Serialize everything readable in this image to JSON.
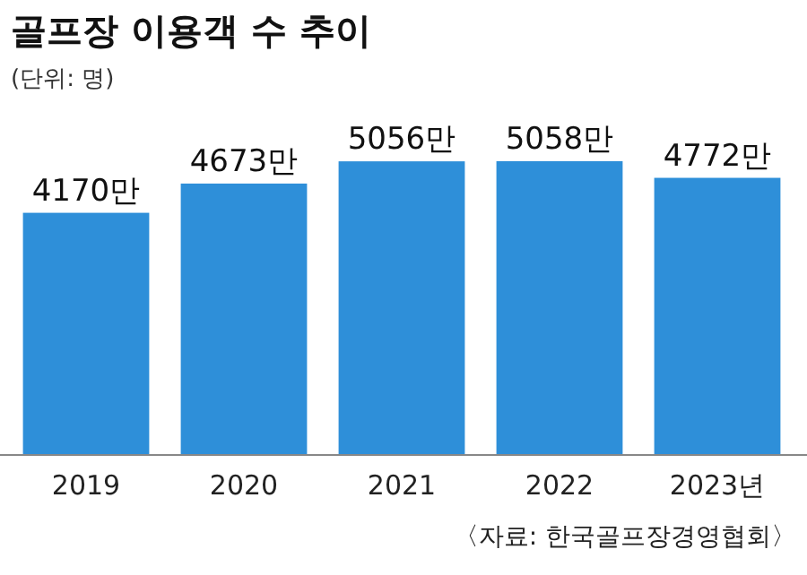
{
  "chart_data": {
    "type": "bar",
    "title": "골프장 이용객 수 추이",
    "subtitle": "(단위: 명)",
    "categories": [
      "2019",
      "2020",
      "2021",
      "2022",
      "2023년"
    ],
    "values": [
      4170,
      4673,
      5056,
      5058,
      4772
    ],
    "value_labels": [
      "4170만",
      "4673만",
      "5056만",
      "5058만",
      "4772만"
    ],
    "color": "#2e8fd9",
    "annotations": [
      "〈자료: 한국골프장경영협회〉"
    ]
  }
}
